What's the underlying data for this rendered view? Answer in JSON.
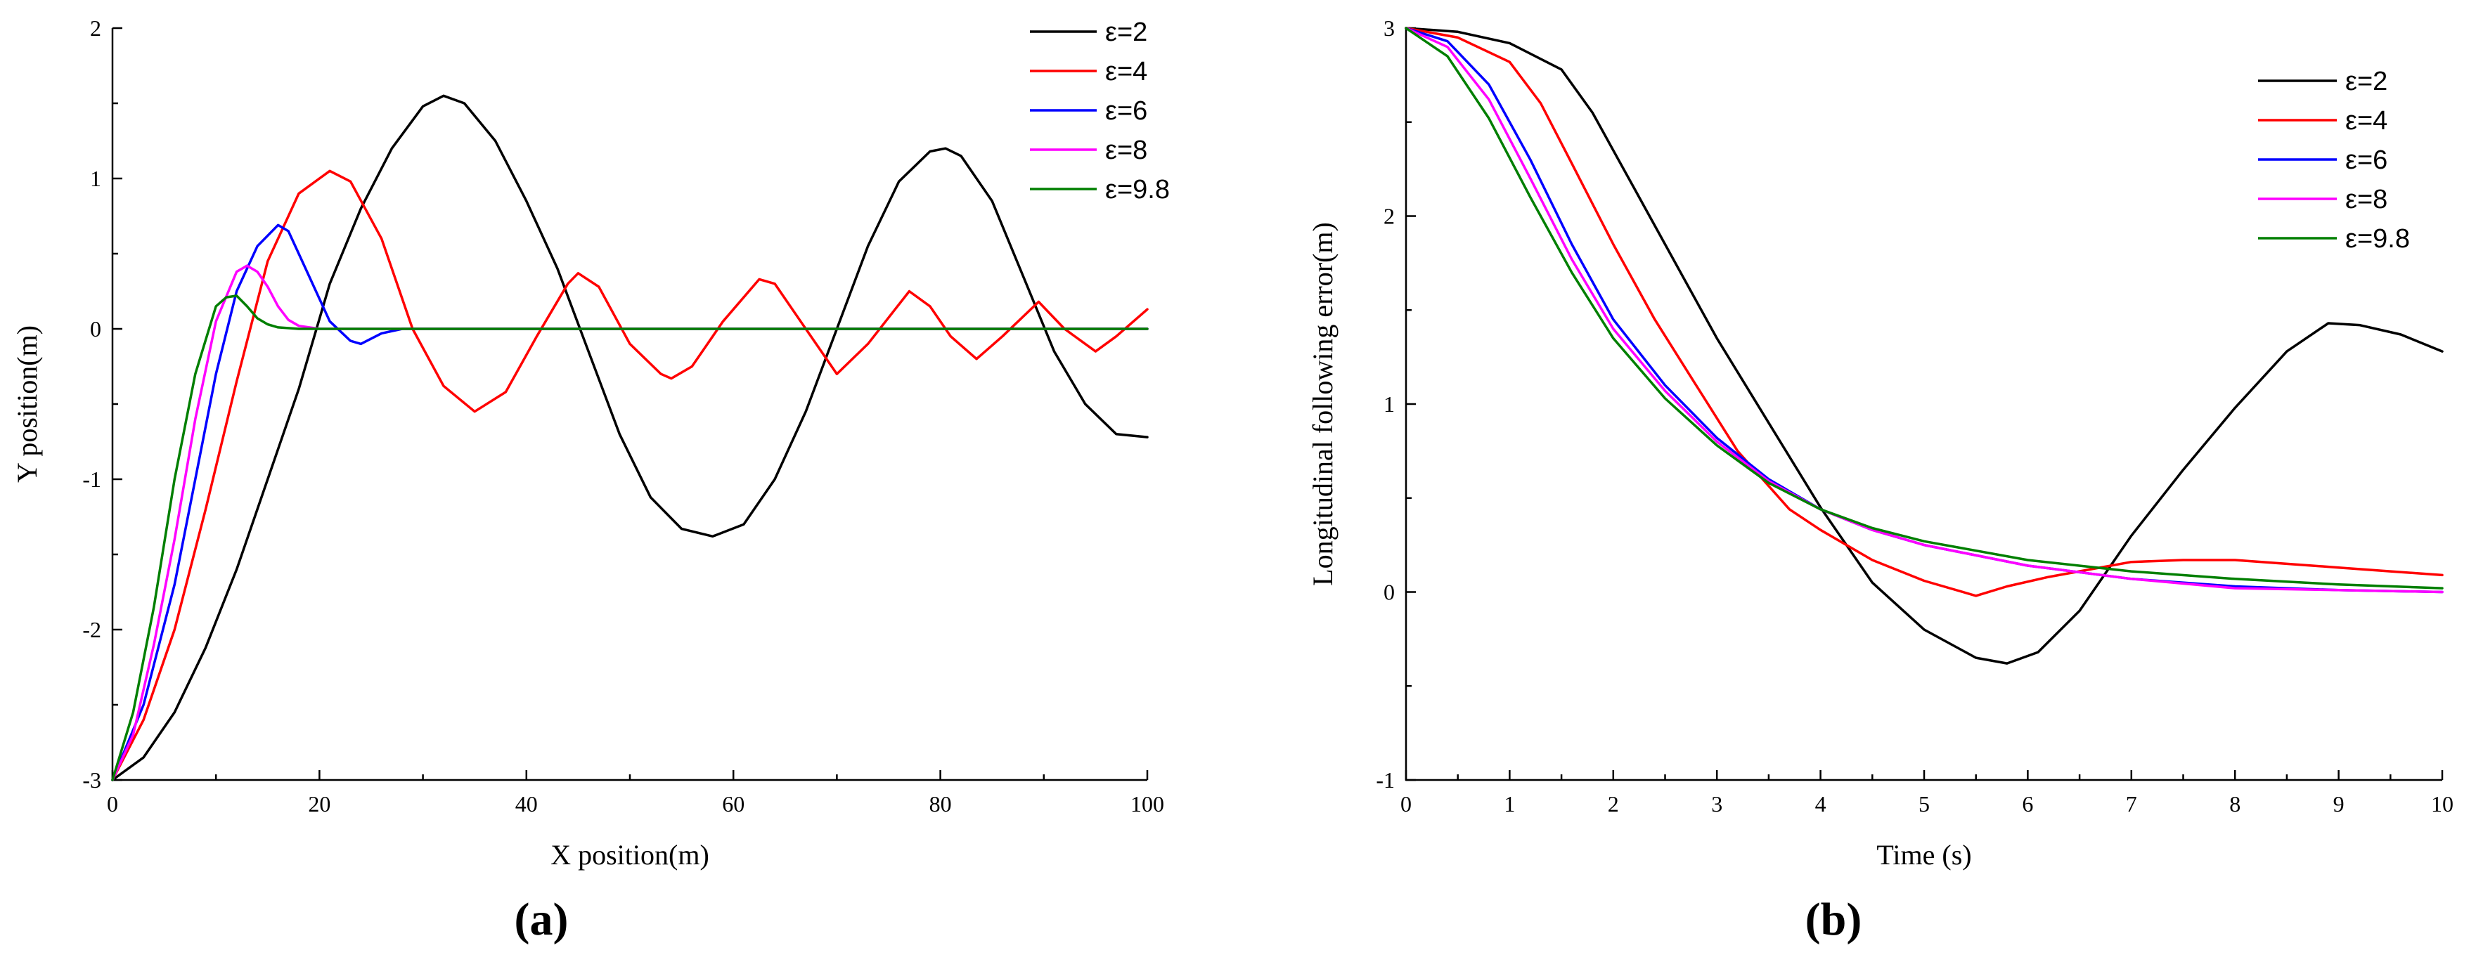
{
  "chart_data": [
    {
      "type": "line",
      "panel_label": "(a)",
      "title": "",
      "xlabel": "X position(m)",
      "ylabel": "Y position(m)",
      "xlim": [
        0,
        100
      ],
      "ylim": [
        -3,
        2
      ],
      "xticks": [
        0,
        20,
        40,
        60,
        80,
        100
      ],
      "yticks": [
        -3,
        -2,
        -1,
        0,
        1,
        2
      ],
      "legend_position": "top-right",
      "series": [
        {
          "name": "ε=2",
          "color": "#000000",
          "x": [
            0,
            3,
            6,
            9,
            12,
            15,
            18,
            21,
            24,
            27,
            30,
            32,
            34,
            37,
            40,
            43,
            46,
            49,
            52,
            55,
            58,
            61,
            64,
            67,
            70,
            73,
            76,
            79,
            80.5,
            82,
            85,
            88,
            91,
            94,
            97,
            100
          ],
          "y": [
            -3.0,
            -2.85,
            -2.55,
            -2.12,
            -1.6,
            -1.0,
            -0.4,
            0.3,
            0.8,
            1.2,
            1.48,
            1.55,
            1.5,
            1.25,
            0.85,
            0.4,
            -0.15,
            -0.7,
            -1.12,
            -1.33,
            -1.38,
            -1.3,
            -1.0,
            -0.55,
            0.0,
            0.55,
            0.98,
            1.18,
            1.2,
            1.15,
            0.85,
            0.35,
            -0.15,
            -0.5,
            -0.7,
            -0.72
          ]
        },
        {
          "name": "ε=4",
          "color": "#ff0000",
          "x": [
            0,
            3,
            6,
            9,
            12,
            15,
            18,
            21,
            23,
            26,
            29,
            32,
            35,
            38,
            41,
            44,
            45,
            47,
            50,
            53,
            54,
            56,
            59,
            62.5,
            64,
            67,
            70,
            73,
            77,
            79,
            81,
            83.5,
            86,
            89.5,
            92,
            95,
            97,
            100
          ],
          "y": [
            -3.0,
            -2.6,
            -2.0,
            -1.2,
            -0.35,
            0.45,
            0.9,
            1.05,
            0.98,
            0.6,
            0.0,
            -0.38,
            -0.55,
            -0.42,
            -0.05,
            0.3,
            0.37,
            0.28,
            -0.1,
            -0.3,
            -0.33,
            -0.25,
            0.05,
            0.33,
            0.3,
            0.0,
            -0.3,
            -0.1,
            0.25,
            0.15,
            -0.05,
            -0.2,
            -0.05,
            0.18,
            0.0,
            -0.15,
            -0.05,
            0.13
          ]
        },
        {
          "name": "ε=6",
          "color": "#0000ff",
          "x": [
            0,
            3,
            6,
            8,
            10,
            12,
            14,
            16,
            17,
            19,
            21,
            23,
            24,
            26,
            28,
            30,
            40,
            60,
            80,
            100
          ],
          "y": [
            -3.0,
            -2.5,
            -1.7,
            -1.0,
            -0.3,
            0.25,
            0.55,
            0.69,
            0.65,
            0.35,
            0.05,
            -0.08,
            -0.1,
            -0.03,
            0.0,
            0.0,
            0.0,
            0.0,
            0.0,
            0.0
          ]
        },
        {
          "name": "ε=8",
          "color": "#ff00ff",
          "x": [
            0,
            2,
            4,
            6,
            8,
            10,
            12,
            13,
            14,
            15,
            16,
            17,
            18,
            20,
            22,
            25,
            40,
            60,
            80,
            100
          ],
          "y": [
            -3.0,
            -2.7,
            -2.1,
            -1.4,
            -0.6,
            0.05,
            0.38,
            0.42,
            0.38,
            0.28,
            0.15,
            0.06,
            0.02,
            0.0,
            0.0,
            0.0,
            0.0,
            0.0,
            0.0,
            0.0
          ]
        },
        {
          "name": "ε=9.8",
          "color": "#007f00",
          "x": [
            0,
            2,
            4,
            6,
            8,
            10,
            11,
            12,
            13,
            14,
            15,
            16,
            18,
            20,
            30,
            40,
            60,
            80,
            100
          ],
          "y": [
            -3.0,
            -2.55,
            -1.85,
            -1.0,
            -0.3,
            0.15,
            0.21,
            0.22,
            0.15,
            0.07,
            0.03,
            0.01,
            0.0,
            0.0,
            0.0,
            0.0,
            0.0,
            0.0,
            0.0
          ]
        }
      ]
    },
    {
      "type": "line",
      "panel_label": "(b)",
      "title": "",
      "xlabel": "Time (s)",
      "ylabel": "Longitudinal following error(m)",
      "xlim": [
        0,
        10
      ],
      "ylim": [
        -1,
        3
      ],
      "xticks": [
        0,
        1,
        2,
        3,
        4,
        5,
        6,
        7,
        8,
        9,
        10
      ],
      "yticks": [
        -1,
        0,
        1,
        2,
        3
      ],
      "legend_position": "top-right",
      "series": [
        {
          "name": "ε=2",
          "color": "#000000",
          "x": [
            0,
            0.5,
            1.0,
            1.5,
            1.8,
            2.2,
            2.6,
            3.0,
            3.5,
            4.0,
            4.5,
            5.0,
            5.5,
            5.8,
            6.1,
            6.5,
            7.0,
            7.5,
            8.0,
            8.5,
            8.9,
            9.2,
            9.6,
            10
          ],
          "y": [
            3.0,
            2.98,
            2.92,
            2.78,
            2.55,
            2.15,
            1.75,
            1.35,
            0.9,
            0.45,
            0.05,
            -0.2,
            -0.35,
            -0.38,
            -0.32,
            -0.1,
            0.3,
            0.65,
            0.98,
            1.28,
            1.43,
            1.42,
            1.37,
            1.28
          ]
        },
        {
          "name": "ε=4",
          "color": "#ff0000",
          "x": [
            0,
            0.5,
            1.0,
            1.3,
            1.6,
            2.0,
            2.4,
            2.8,
            3.2,
            3.7,
            4.0,
            4.5,
            5.0,
            5.5,
            5.8,
            6.2,
            6.6,
            7.0,
            7.5,
            8.0,
            8.5,
            9.0,
            9.5,
            10
          ],
          "y": [
            3.0,
            2.95,
            2.82,
            2.6,
            2.28,
            1.85,
            1.45,
            1.1,
            0.75,
            0.44,
            0.33,
            0.17,
            0.06,
            -0.02,
            0.03,
            0.08,
            0.12,
            0.16,
            0.17,
            0.17,
            0.15,
            0.13,
            0.11,
            0.09
          ]
        },
        {
          "name": "ε=6",
          "color": "#0000ff",
          "x": [
            0,
            0.4,
            0.8,
            1.2,
            1.6,
            2.0,
            2.5,
            3.0,
            3.5,
            4.0,
            4.5,
            5.0,
            6.0,
            7.0,
            8.0,
            9.0,
            10
          ],
          "y": [
            3.0,
            2.93,
            2.7,
            2.3,
            1.85,
            1.45,
            1.1,
            0.82,
            0.6,
            0.44,
            0.33,
            0.25,
            0.14,
            0.07,
            0.03,
            0.01,
            0.0
          ]
        },
        {
          "name": "ε=8",
          "color": "#ff00ff",
          "x": [
            0,
            0.4,
            0.8,
            1.2,
            1.6,
            2.0,
            2.5,
            3.0,
            3.5,
            4.0,
            4.5,
            5.0,
            6.0,
            7.0,
            8.0,
            9.0,
            10
          ],
          "y": [
            3.0,
            2.9,
            2.62,
            2.2,
            1.77,
            1.4,
            1.07,
            0.8,
            0.59,
            0.44,
            0.33,
            0.25,
            0.14,
            0.07,
            0.02,
            0.01,
            0.0
          ]
        },
        {
          "name": "ε=9.8",
          "color": "#007f00",
          "x": [
            0,
            0.4,
            0.8,
            1.2,
            1.6,
            2.0,
            2.5,
            3.0,
            3.5,
            4.0,
            4.5,
            5.0,
            6.0,
            7.0,
            8.0,
            9.0,
            10
          ],
          "y": [
            3.0,
            2.85,
            2.52,
            2.1,
            1.7,
            1.35,
            1.03,
            0.78,
            0.58,
            0.44,
            0.34,
            0.27,
            0.17,
            0.11,
            0.07,
            0.04,
            0.02
          ]
        }
      ]
    }
  ]
}
